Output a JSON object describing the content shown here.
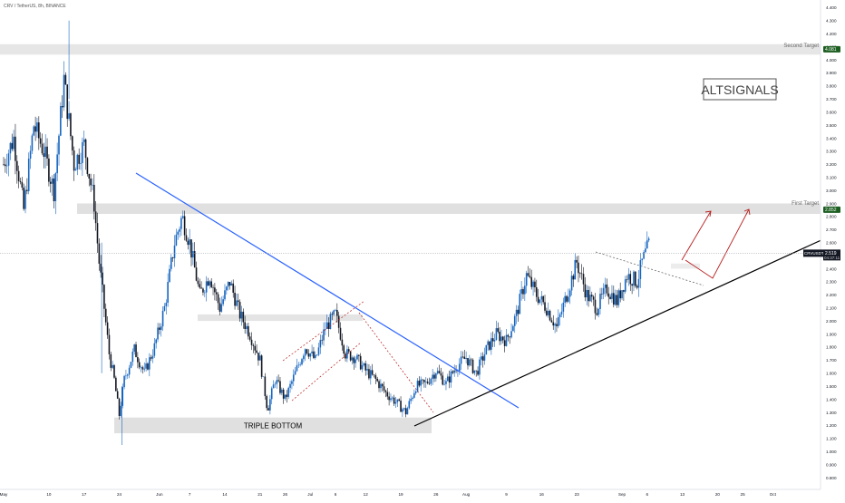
{
  "header": {
    "symbol_line": "CRV / TetherUS, 8h, BINANCE"
  },
  "watermark": {
    "text": "ALTSIGNALS"
  },
  "colors": {
    "up_candle": "#1565c0",
    "down_candle": "#131722",
    "trendline": "#2962ff",
    "support_line": "#000000",
    "projection_arrow": "#b71c1c",
    "zone_fill": "#d6d6d6",
    "target_label_bg": "#1b5e20",
    "price_label_bg": "#131722"
  },
  "chart_data": {
    "type": "candlestick",
    "title": "CRV / TetherUS, 8h, BINANCE",
    "xlabel": "",
    "ylabel": "",
    "ylim": [
      0.75,
      4.43
    ],
    "y_ticks": [
      "0.800",
      "0.900",
      "1.000",
      "1.100",
      "1.200",
      "1.300",
      "1.400",
      "1.500",
      "1.600",
      "1.700",
      "1.800",
      "1.900",
      "2.000",
      "2.100",
      "2.200",
      "2.300",
      "2.400",
      "2.500",
      "2.600",
      "2.700",
      "2.800",
      "2.900",
      "3.000",
      "3.100",
      "3.200",
      "3.300",
      "3.400",
      "3.500",
      "3.600",
      "3.700",
      "3.800",
      "3.900",
      "4.000",
      "4.100",
      "4.200",
      "4.300",
      "4.400"
    ],
    "x_ticks": [
      {
        "label": "May",
        "day": 0
      },
      {
        "label": "10",
        "day": 9
      },
      {
        "label": "17",
        "day": 16
      },
      {
        "label": "24",
        "day": 23
      },
      {
        "label": "Jun",
        "day": 31
      },
      {
        "label": "7",
        "day": 37
      },
      {
        "label": "14",
        "day": 44
      },
      {
        "label": "21",
        "day": 51
      },
      {
        "label": "26",
        "day": 56
      },
      {
        "label": "Jul",
        "day": 61
      },
      {
        "label": "6",
        "day": 66
      },
      {
        "label": "12",
        "day": 72
      },
      {
        "label": "19",
        "day": 79
      },
      {
        "label": "26",
        "day": 86
      },
      {
        "label": "Aug",
        "day": 92
      },
      {
        "label": "9",
        "day": 100
      },
      {
        "label": "16",
        "day": 107
      },
      {
        "label": "23",
        "day": 114
      },
      {
        "label": "Sep",
        "day": 123
      },
      {
        "label": "6",
        "day": 128
      },
      {
        "label": "13",
        "day": 135
      },
      {
        "label": "20",
        "day": 142
      },
      {
        "label": "25",
        "day": 147
      },
      {
        "label": "Oct",
        "day": 153
      }
    ],
    "price_anchors": [
      {
        "day": 0,
        "price": 3.2
      },
      {
        "day": 2,
        "price": 3.4
      },
      {
        "day": 4,
        "price": 2.85
      },
      {
        "day": 6,
        "price": 3.5
      },
      {
        "day": 8,
        "price": 3.3
      },
      {
        "day": 10,
        "price": 3.0
      },
      {
        "day": 12,
        "price": 3.85
      },
      {
        "day": 14,
        "price": 3.2
      },
      {
        "day": 16,
        "price": 3.35
      },
      {
        "day": 18,
        "price": 2.9
      },
      {
        "day": 19,
        "price": 2.45
      },
      {
        "day": 20,
        "price": 2.1
      },
      {
        "day": 21,
        "price": 1.75
      },
      {
        "day": 22,
        "price": 1.55
      },
      {
        "day": 23,
        "price": 1.28
      },
      {
        "day": 24,
        "price": 1.55
      },
      {
        "day": 26,
        "price": 1.78
      },
      {
        "day": 28,
        "price": 1.6
      },
      {
        "day": 30,
        "price": 1.8
      },
      {
        "day": 32,
        "price": 2.1
      },
      {
        "day": 34,
        "price": 2.6
      },
      {
        "day": 35.5,
        "price": 2.8
      },
      {
        "day": 37,
        "price": 2.6
      },
      {
        "day": 39,
        "price": 2.2
      },
      {
        "day": 41,
        "price": 2.35
      },
      {
        "day": 43,
        "price": 2.1
      },
      {
        "day": 45,
        "price": 2.3
      },
      {
        "day": 47,
        "price": 2.05
      },
      {
        "day": 49,
        "price": 1.9
      },
      {
        "day": 51,
        "price": 1.7
      },
      {
        "day": 52.5,
        "price": 1.32
      },
      {
        "day": 54,
        "price": 1.55
      },
      {
        "day": 56,
        "price": 1.4
      },
      {
        "day": 58,
        "price": 1.6
      },
      {
        "day": 60,
        "price": 1.8
      },
      {
        "day": 62,
        "price": 1.7
      },
      {
        "day": 64,
        "price": 1.95
      },
      {
        "day": 66,
        "price": 2.05
      },
      {
        "day": 68,
        "price": 1.75
      },
      {
        "day": 70,
        "price": 1.72
      },
      {
        "day": 72,
        "price": 1.62
      },
      {
        "day": 74,
        "price": 1.55
      },
      {
        "day": 76,
        "price": 1.45
      },
      {
        "day": 78,
        "price": 1.38
      },
      {
        "day": 80,
        "price": 1.3
      },
      {
        "day": 82,
        "price": 1.5
      },
      {
        "day": 84,
        "price": 1.52
      },
      {
        "day": 86,
        "price": 1.62
      },
      {
        "day": 88,
        "price": 1.52
      },
      {
        "day": 90,
        "price": 1.65
      },
      {
        "day": 92,
        "price": 1.72
      },
      {
        "day": 94,
        "price": 1.6
      },
      {
        "day": 96,
        "price": 1.78
      },
      {
        "day": 98,
        "price": 1.9
      },
      {
        "day": 100,
        "price": 1.85
      },
      {
        "day": 102,
        "price": 2.05
      },
      {
        "day": 104,
        "price": 2.35
      },
      {
        "day": 106,
        "price": 2.2
      },
      {
        "day": 108,
        "price": 2.1
      },
      {
        "day": 110,
        "price": 1.95
      },
      {
        "day": 112,
        "price": 2.2
      },
      {
        "day": 114,
        "price": 2.45
      },
      {
        "day": 116,
        "price": 2.2
      },
      {
        "day": 118,
        "price": 2.1
      },
      {
        "day": 120,
        "price": 2.25
      },
      {
        "day": 122,
        "price": 2.15
      },
      {
        "day": 124,
        "price": 2.35
      },
      {
        "day": 126,
        "price": 2.3
      },
      {
        "day": 127,
        "price": 2.45
      },
      {
        "day": 128.5,
        "price": 2.6
      }
    ]
  },
  "zones": {
    "second_target": {
      "label": "Second Target",
      "price_label": "4.081",
      "low": 4.04,
      "high": 4.12
    },
    "first_target": {
      "label": "First Target",
      "price_label": "2.852",
      "low": 2.82,
      "high": 2.9
    },
    "triple_bottom": {
      "label": "TRIPLE BOTTOM",
      "low": 1.14,
      "high": 1.26
    },
    "mid_support": {
      "low": 2.0,
      "high": 2.05
    }
  },
  "price_marker": {
    "symbol": "CRVUSDT",
    "price": "2.519",
    "countdown": "04:37:11",
    "value": 2.519
  }
}
